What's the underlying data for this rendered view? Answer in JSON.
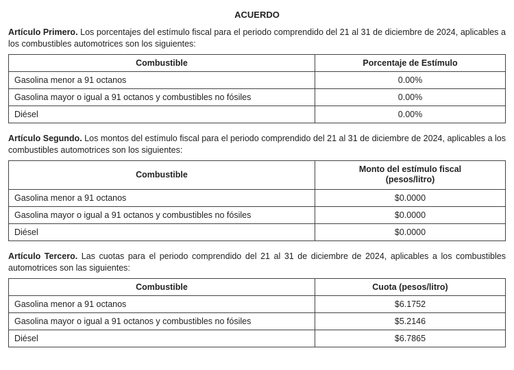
{
  "title": "ACUERDO",
  "article1": {
    "lead": "Artículo Primero.",
    "text": " Los porcentajes del estímulo fiscal para el periodo comprendido del 21 al 31 de diciembre de 2024, aplicables a los combustibles automotrices son los siguientes:"
  },
  "table1": {
    "headers": {
      "fuel": "Combustible",
      "value": "Porcentaje de Estímulo"
    },
    "rows": [
      {
        "fuel": "Gasolina menor a 91 octanos",
        "value": "0.00%"
      },
      {
        "fuel": "Gasolina mayor o igual a 91 octanos y combustibles no fósiles",
        "value": "0.00%"
      },
      {
        "fuel": "Diésel",
        "value": "0.00%"
      }
    ]
  },
  "article2": {
    "lead": "Artículo Segundo.",
    "text": " Los montos del estímulo fiscal para el periodo comprendido del 21 al 31 de diciembre de 2024, aplicables a los combustibles automotrices son los siguientes:"
  },
  "table2": {
    "headers": {
      "fuel": "Combustible",
      "value_line1": "Monto del estímulo fiscal",
      "value_line2": "(pesos/litro)"
    },
    "rows": [
      {
        "fuel": "Gasolina menor a 91 octanos",
        "value": "$0.0000"
      },
      {
        "fuel": "Gasolina mayor o igual a 91 octanos y combustibles no fósiles",
        "value": "$0.0000"
      },
      {
        "fuel": "Diésel",
        "value": "$0.0000"
      }
    ]
  },
  "article3": {
    "lead": "Artículo Tercero.",
    "text": " Las cuotas para el periodo comprendido del 21 al 31 de diciembre de 2024, aplicables a los combustibles automotrices son las siguientes:"
  },
  "table3": {
    "headers": {
      "fuel": "Combustible",
      "value": "Cuota (pesos/litro)"
    },
    "rows": [
      {
        "fuel": "Gasolina menor a 91 octanos",
        "value": "$6.1752"
      },
      {
        "fuel": "Gasolina mayor o igual a 91 octanos y combustibles no fósiles",
        "value": "$5.2146"
      },
      {
        "fuel": "Diésel",
        "value": "$6.7865"
      }
    ]
  }
}
